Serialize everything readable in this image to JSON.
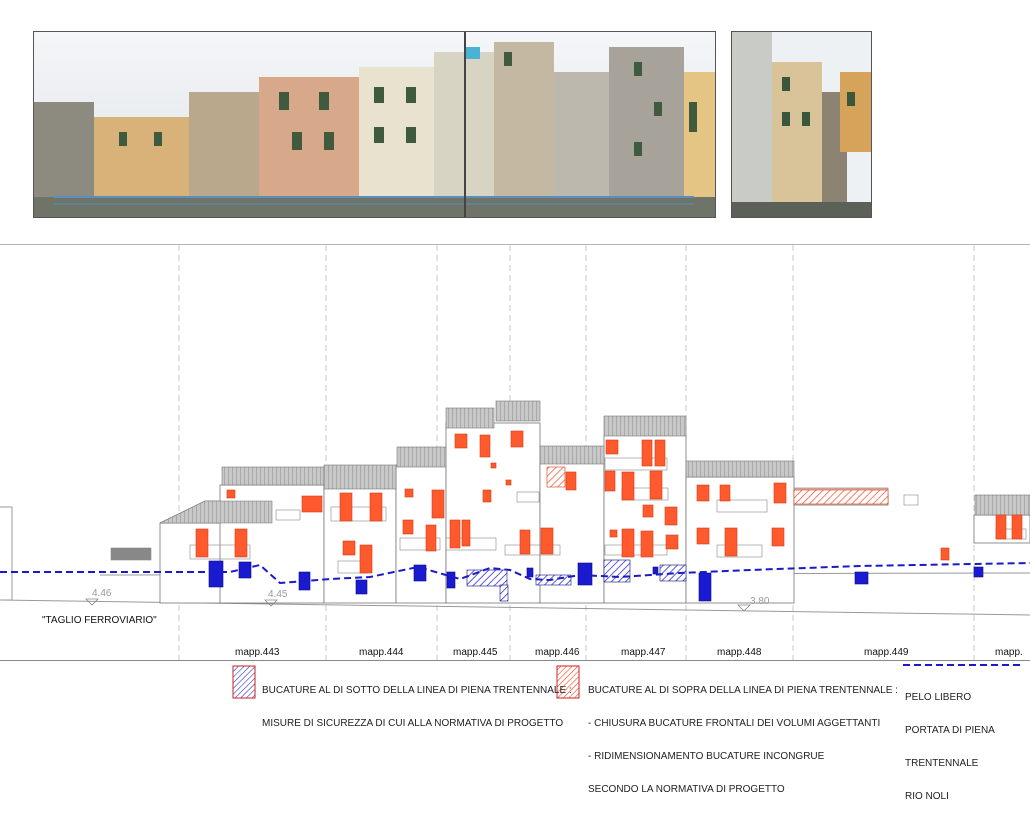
{
  "photos": {
    "left_description_icon": "panorama-photo-icon",
    "right_description_icon": "side-view-photo-icon"
  },
  "elevation": {
    "taglio_label": "\"TAGLIO FERROVIARIO\"",
    "levels": [
      "4.46",
      "4.45",
      "3.80"
    ],
    "parcels": [
      "mapp.443",
      "mapp.444",
      "mapp.445",
      "mapp.446",
      "mapp.447",
      "mapp.448",
      "mapp.449",
      "mapp."
    ]
  },
  "legend": {
    "below": {
      "title": "BUCATURE AL DI SOTTO DELLA LINEA DI PIENA TRENTENNALE :",
      "line1": "MISURE DI SICUREZZA DI CUI ALLA NORMATIVA DI PROGETTO"
    },
    "above": {
      "title": "BUCATURE AL DI SOPRA DELLA LINEA DI PIENA TRENTENNALE :",
      "line1": "- CHIUSURA BUCATURE FRONTALI DEI VOLUMI AGGETTANTI",
      "line2": "- RIDIMENSIONAMENTO BUCATURE INCONGRUE",
      "line3": "SECONDO LA NORMATIVA DI PROGETTO"
    },
    "flood_line": {
      "line1": "PELO LIBERO",
      "line2": "PORTATA DI PIENA",
      "line3": "TRENTENNALE",
      "line4": "RIO NOLI"
    }
  },
  "colors": {
    "below_fill": "#1a1ad0",
    "above_fill": "#ff5a2e",
    "flood_line": "#1a1ac8"
  }
}
